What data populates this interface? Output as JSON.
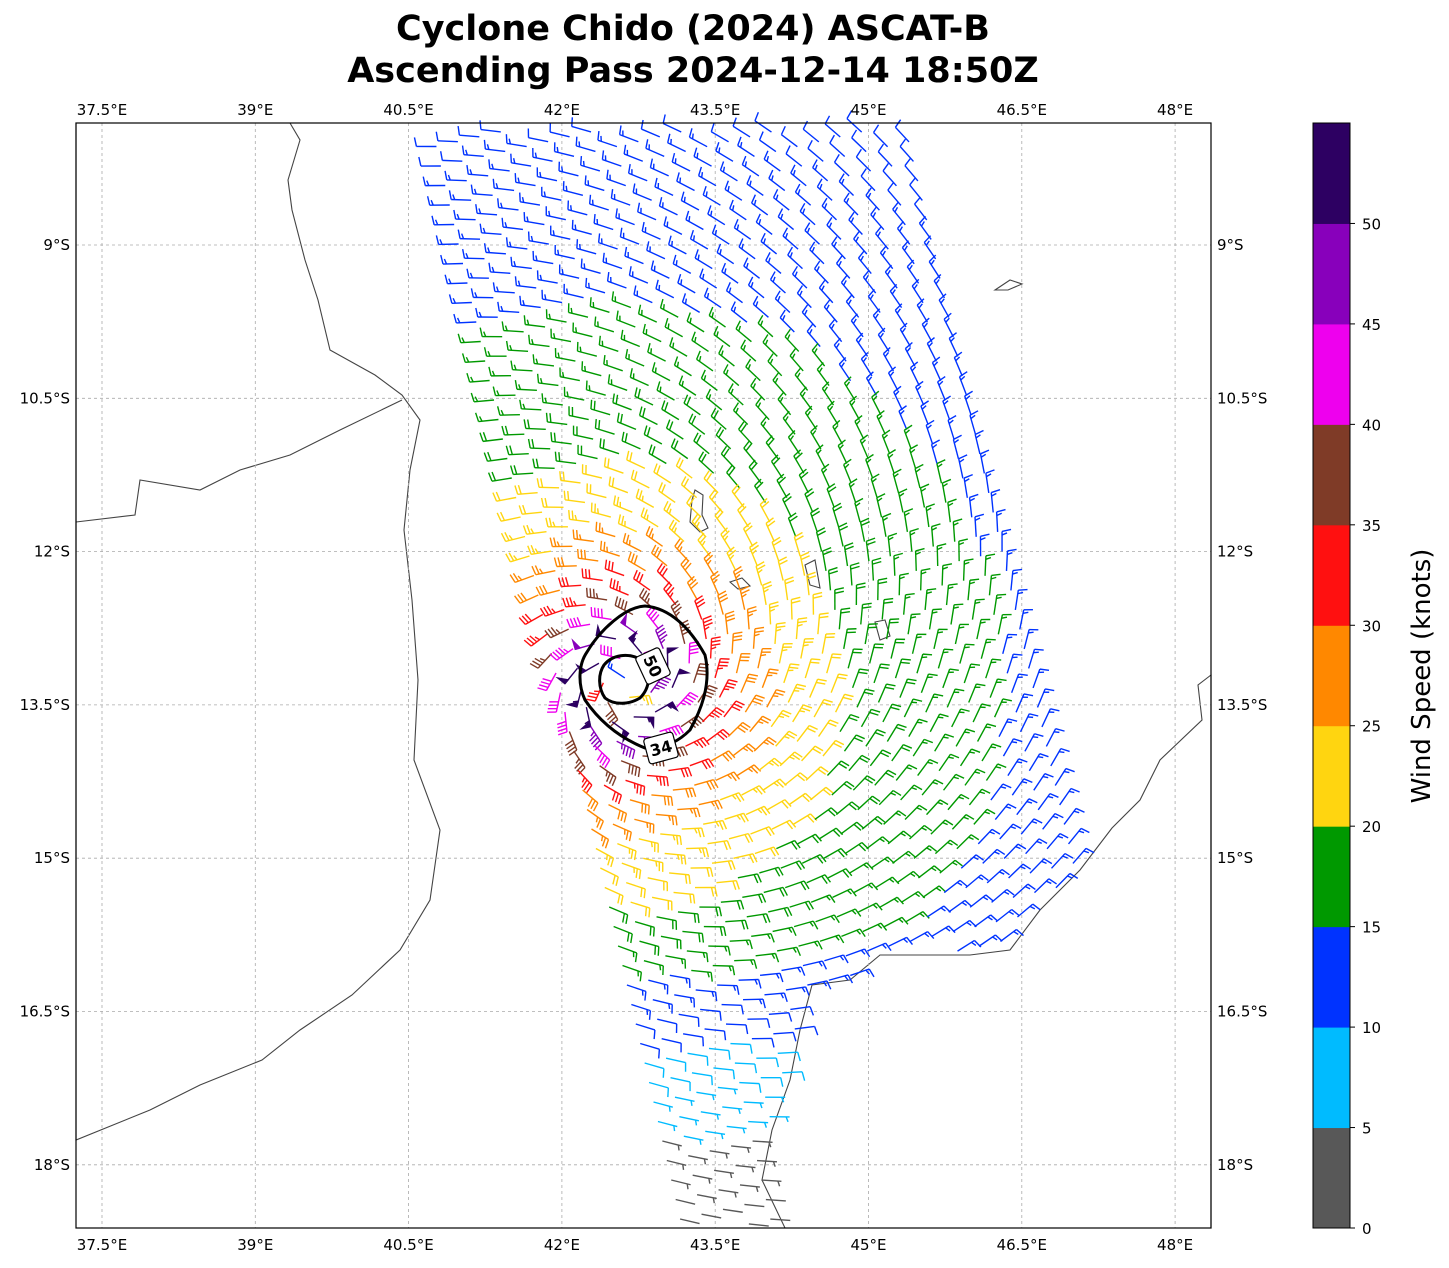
{
  "title": {
    "line1": "Cyclone Chido (2024) ASCAT-B",
    "line2": "Ascending Pass 2024-12-14 18:50Z"
  },
  "chart_data": {
    "type": "wind-barb-map",
    "extent": {
      "lon": [
        37.25,
        48.35
      ],
      "lat": [
        -7.8,
        -18.6
      ]
    },
    "lon_values": [
      37.5,
      39,
      40.5,
      42,
      43.5,
      45,
      46.5,
      48
    ],
    "lon_ticks": [
      "37.5°E",
      "39°E",
      "40.5°E",
      "42°E",
      "43.5°E",
      "45°E",
      "46.5°E",
      "48°E"
    ],
    "lat_values": [
      -9,
      -10.5,
      -12,
      -13.5,
      -15,
      -16.5,
      -18
    ],
    "lat_ticks": [
      "9°S",
      "10.5°S",
      "12°S",
      "13.5°S",
      "15°S",
      "16.5°S",
      "18°S"
    ],
    "gridlines": true,
    "colorbar": {
      "label": "Wind Speed (knots)",
      "levels": [
        0,
        5,
        10,
        15,
        20,
        25,
        30,
        35,
        40,
        45,
        50,
        55
      ],
      "colors": [
        "#585858",
        "#00bbff",
        "#0033ff",
        "#009900",
        "#ffd510",
        "#ff8800",
        "#ff1010",
        "#7f3b27",
        "#ee00ee",
        "#8800bb",
        "#2d0062"
      ],
      "tick_labels": [
        "0",
        "5",
        "10",
        "15",
        "20",
        "25",
        "30",
        "35",
        "40",
        "45",
        "50"
      ]
    },
    "contours": [
      {
        "level": 34,
        "label": "34"
      },
      {
        "level": 50,
        "label": "50"
      }
    ],
    "vortex": {
      "center_lon": 42.6,
      "center_lat": -13.3,
      "max_wind_kt": 55
    }
  }
}
